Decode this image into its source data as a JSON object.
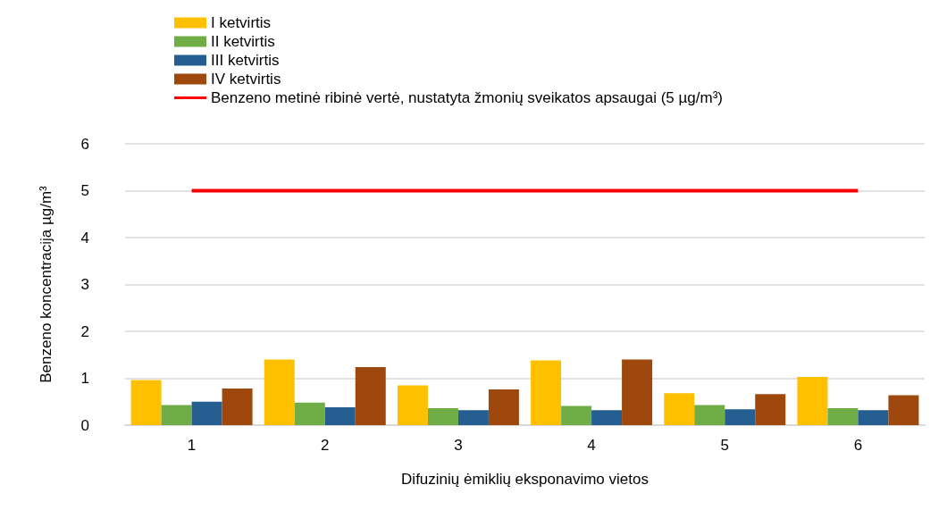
{
  "chart_data": {
    "type": "bar",
    "xlabel": "Difuzinių ėmiklių eksponavimo vietos",
    "ylabel": "Benzeno koncentracija µg/m³",
    "categories": [
      "1",
      "2",
      "3",
      "4",
      "5",
      "6"
    ],
    "series": [
      {
        "name": "I ketvirtis",
        "color": "#ffc000",
        "values": [
          0.96,
          1.4,
          0.85,
          1.38,
          0.68,
          1.03
        ]
      },
      {
        "name": "II ketvirtis",
        "color": "#70ad47",
        "values": [
          0.43,
          0.48,
          0.36,
          0.41,
          0.43,
          0.36
        ]
      },
      {
        "name": "III ketvirtis",
        "color": "#255e91",
        "values": [
          0.5,
          0.38,
          0.32,
          0.32,
          0.34,
          0.32
        ]
      },
      {
        "name": "IV ketvirtis",
        "color": "#9e480e",
        "values": [
          0.78,
          1.24,
          0.76,
          1.4,
          0.66,
          0.64
        ]
      },
      {
        "name": "Benzeno metinė ribinė vertė, nustatyta žmonių sveikatos apsaugai (5 µg/m³)",
        "type": "line",
        "color": "#ff0000",
        "marker": "none",
        "values": [
          5,
          5,
          5,
          5,
          5,
          5
        ]
      }
    ],
    "ylim": [
      0,
      6
    ],
    "yticks": [
      0,
      1,
      2,
      3,
      4,
      5,
      6
    ],
    "grid": "y",
    "legend": "top left"
  }
}
